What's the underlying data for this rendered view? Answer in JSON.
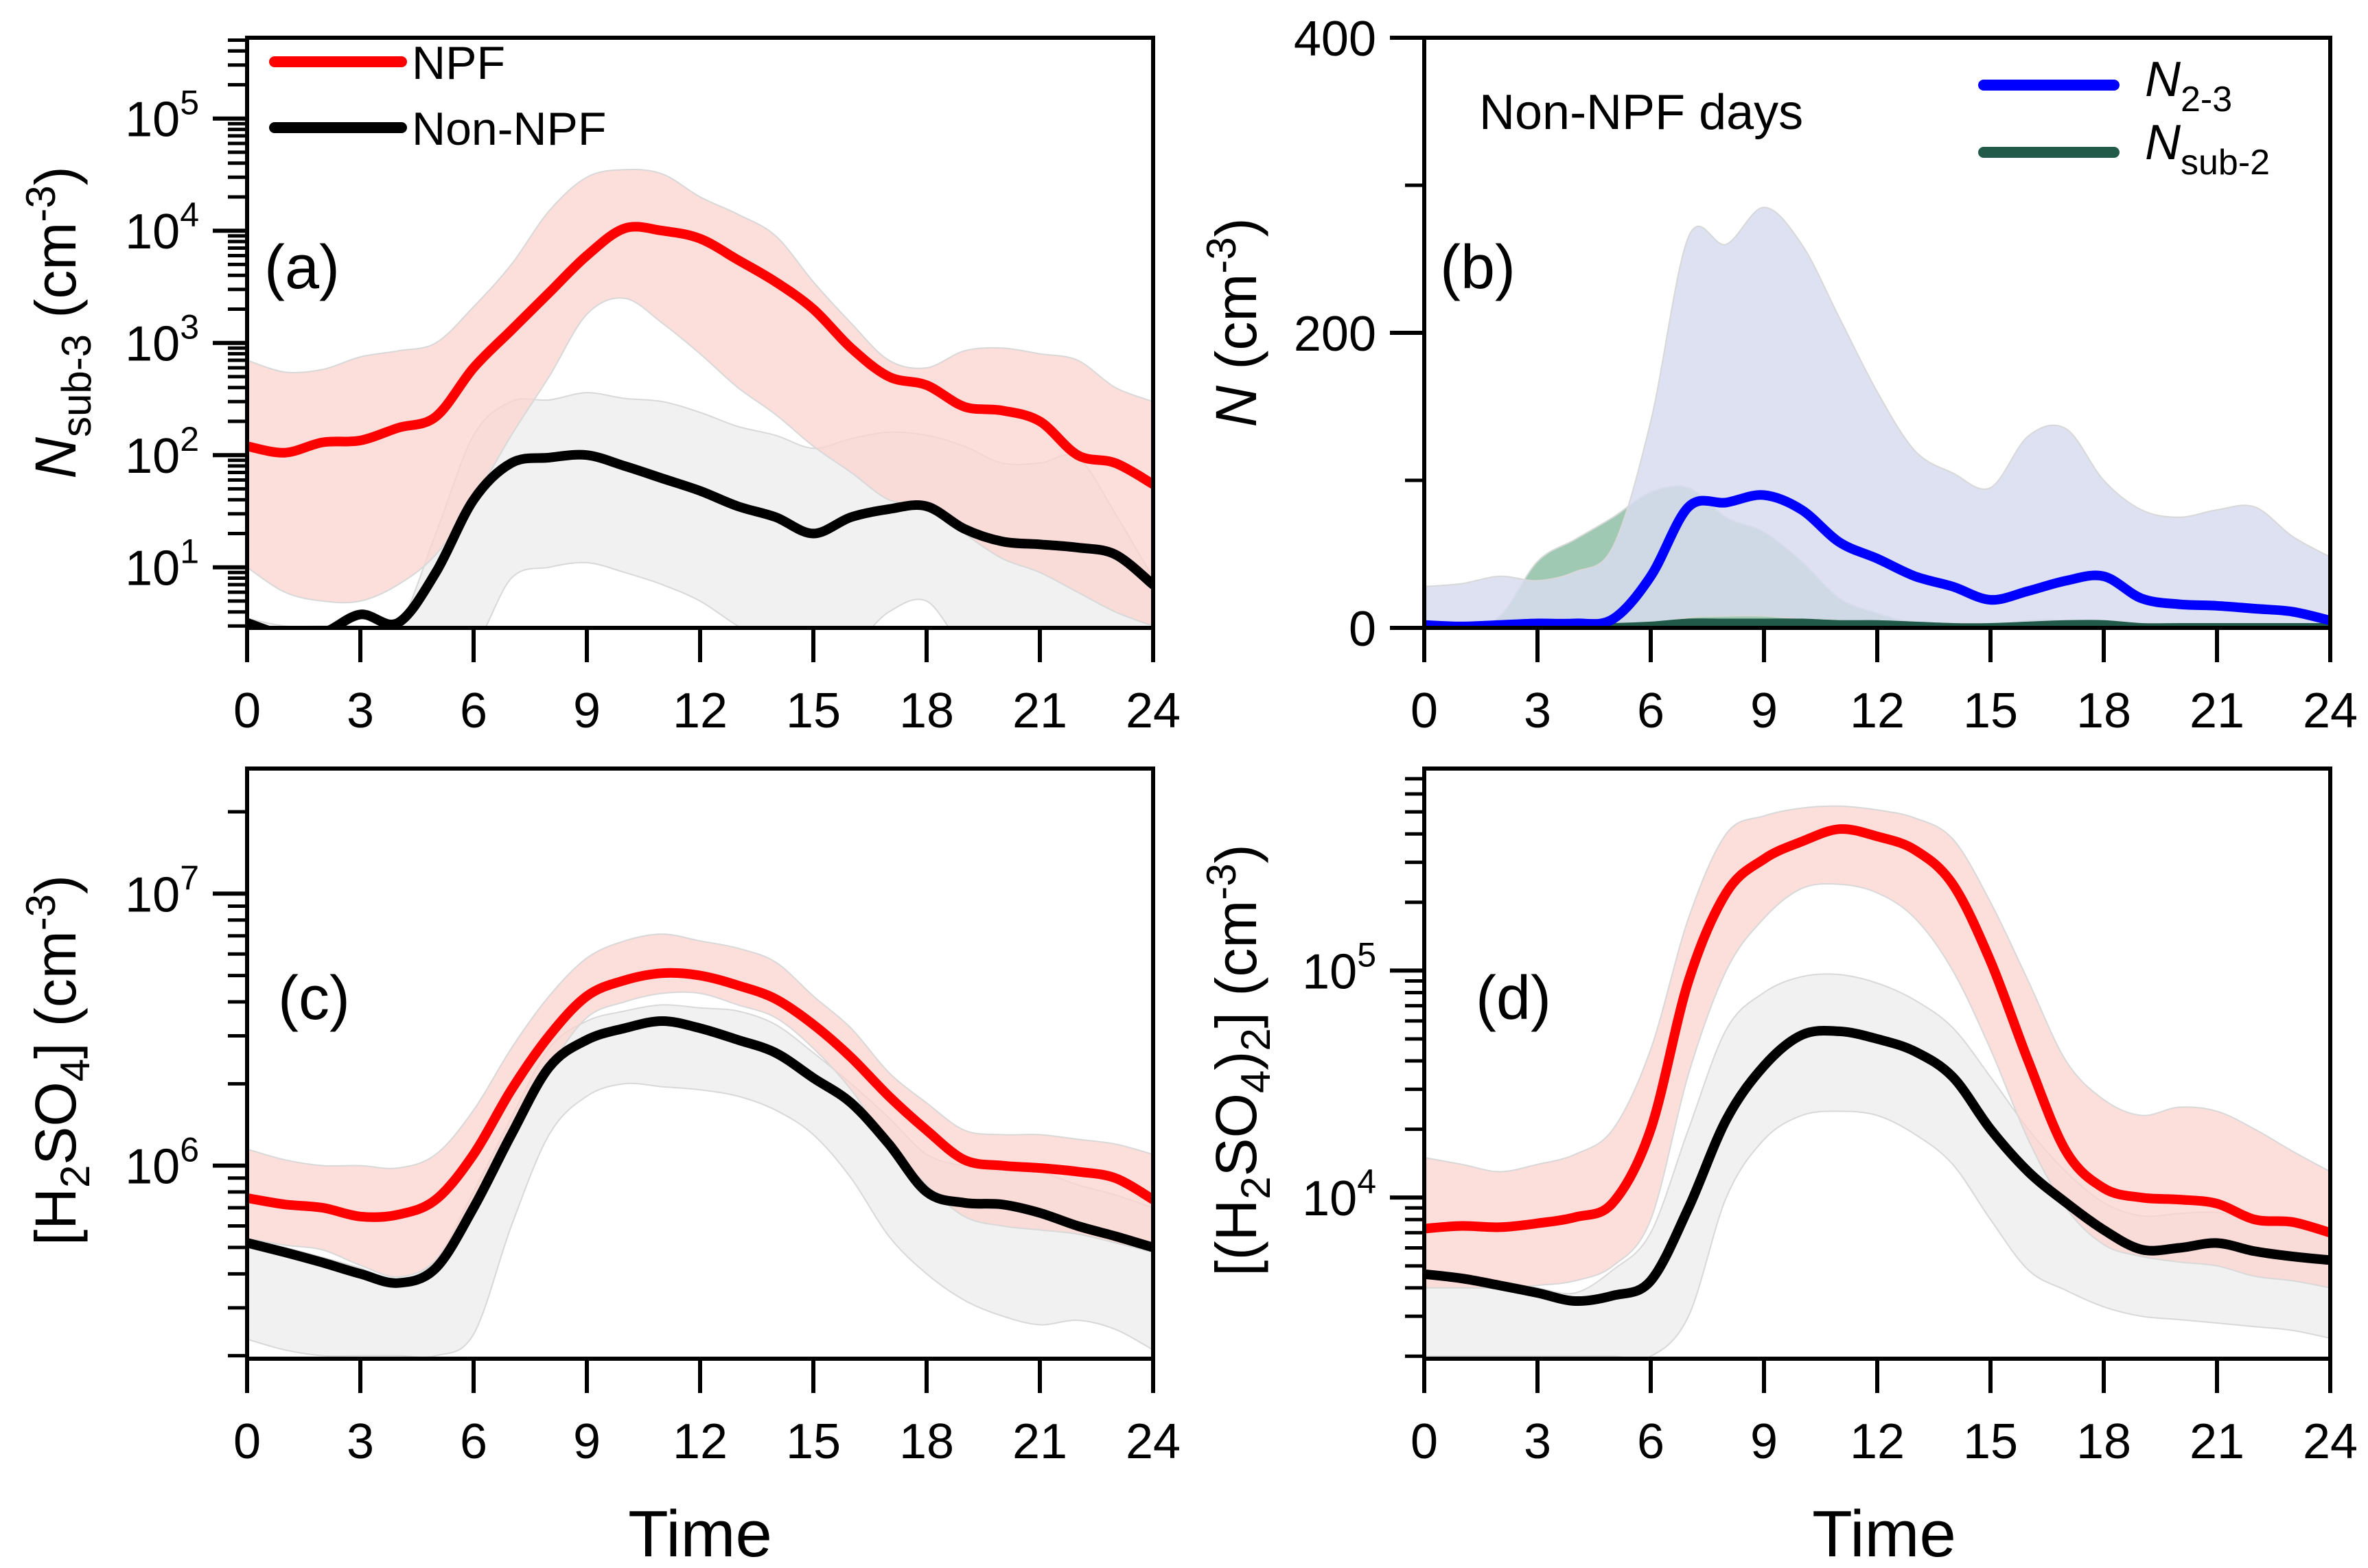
{
  "figure": {
    "x_axis_label": "Time",
    "colors": {
      "npf_line": "#ff0000",
      "npf_band": "#fbd3cf",
      "nonnpf_line": "#000000",
      "nonnpf_band": "#ececec",
      "overlap_line": "#9a7a7a",
      "n23_line": "#0000ff",
      "n23_band": "#d7dcef",
      "nsub2_line": "#215a48",
      "nsub2_band": "#8fbfa6"
    }
  },
  "chart_data": [
    {
      "id": "a",
      "type": "line",
      "panel_label": "(a)",
      "title": "",
      "xlabel": "",
      "ylabel": "N_sub-3 (cm^-3)",
      "ylabel_main": "N",
      "ylabel_sub": "sub-3",
      "ylabel_unit": "(cm",
      "ylabel_sup": "-3",
      "yscale": "log",
      "xlim": [
        0,
        24
      ],
      "ylim_log10": [
        0.46,
        5.72
      ],
      "xticks": [
        0,
        3,
        6,
        9,
        12,
        15,
        18,
        21,
        24
      ],
      "yticks": [
        {
          "base": "10",
          "exp": "1",
          "log": 1
        },
        {
          "base": "10",
          "exp": "2",
          "log": 2
        },
        {
          "base": "10",
          "exp": "3",
          "log": 3
        },
        {
          "base": "10",
          "exp": "4",
          "log": 4
        },
        {
          "base": "10",
          "exp": "5",
          "log": 5
        }
      ],
      "legend": {
        "placement": "top-left",
        "entries": [
          {
            "label": "NPF",
            "color_key": "npf_line"
          },
          {
            "label": "Non-NPF",
            "color_key": "nonnpf_line"
          }
        ]
      },
      "x": [
        0,
        1,
        2,
        3,
        4,
        5,
        6,
        7,
        8,
        9,
        10,
        11,
        12,
        13,
        14,
        15,
        16,
        17,
        18,
        19,
        20,
        21,
        22,
        23,
        24
      ],
      "series": [
        {
          "name": "Non-NPF",
          "color_key": "nonnpf_line",
          "band_key": "nonnpf_band",
          "values": [
            3.2,
            2.5,
            2.6,
            3.8,
            3.2,
            9,
            40,
            85,
            95,
            100,
            80,
            62,
            48,
            35,
            28,
            20,
            28,
            33,
            35,
            22,
            17,
            16,
            15,
            13,
            7
          ],
          "lower": [
            2,
            2,
            2,
            2,
            2,
            2,
            2,
            8,
            10,
            11,
            9,
            7,
            5,
            3,
            2,
            2,
            2,
            4,
            5,
            2,
            2,
            2,
            2,
            2,
            2
          ],
          "upper": [
            3.5,
            3,
            3,
            3,
            3,
            20,
            150,
            300,
            310,
            360,
            320,
            300,
            240,
            180,
            150,
            115,
            140,
            160,
            150,
            120,
            85,
            85,
            95,
            30,
            8
          ]
        },
        {
          "name": "NPF",
          "color_key": "npf_line",
          "band_key": "npf_band",
          "values": [
            120,
            105,
            130,
            135,
            175,
            220,
            600,
            1300,
            2800,
            6000,
            10500,
            10000,
            8500,
            5500,
            3500,
            2000,
            900,
            500,
            420,
            270,
            250,
            200,
            100,
            85,
            55
          ],
          "lower": [
            10,
            6,
            5,
            5,
            7,
            13,
            40,
            150,
            500,
            1800,
            2500,
            1500,
            800,
            400,
            230,
            120,
            70,
            40,
            35,
            20,
            12,
            9,
            6,
            4,
            3
          ],
          "upper": [
            700,
            550,
            580,
            750,
            850,
            1000,
            2100,
            5000,
            15000,
            30000,
            35000,
            32000,
            20000,
            14000,
            9000,
            3500,
            1500,
            700,
            600,
            850,
            900,
            800,
            700,
            400,
            300
          ]
        }
      ]
    },
    {
      "id": "b",
      "type": "line",
      "panel_label": "(b)",
      "annotation": "Non-NPF days",
      "title": "",
      "xlabel": "",
      "ylabel": "N (cm^-3)",
      "ylabel_main": "N",
      "ylabel_unit": "(cm",
      "ylabel_sup": "-3",
      "yscale": "linear",
      "xlim": [
        0,
        24
      ],
      "ylim": [
        0,
        400
      ],
      "xticks": [
        0,
        3,
        6,
        9,
        12,
        15,
        18,
        21,
        24
      ],
      "yticks_labeled": [
        0,
        200,
        400
      ],
      "yticks_minor": [
        100,
        300
      ],
      "legend": {
        "placement": "top-right",
        "entries": [
          {
            "label_main": "N",
            "label_sub": "2-3",
            "color_key": "n23_line"
          },
          {
            "label_main": "N",
            "label_sub": "sub-2",
            "color_key": "nsub2_line"
          }
        ]
      },
      "x": [
        0,
        1,
        2,
        3,
        4,
        5,
        6,
        7,
        8,
        9,
        10,
        11,
        12,
        13,
        14,
        15,
        16,
        17,
        18,
        19,
        20,
        21,
        22,
        23,
        24
      ],
      "series": [
        {
          "name": "N_sub-2",
          "color_key": "nsub2_line",
          "band_key": "nsub2_band",
          "values": [
            0,
            0,
            0,
            0,
            0,
            0,
            1,
            3,
            3,
            3,
            3,
            2,
            2,
            1,
            0,
            0,
            1,
            2,
            2,
            0,
            0,
            0,
            0,
            0,
            0
          ],
          "lower": [
            0,
            0,
            0,
            0,
            0,
            0,
            0,
            0,
            0,
            0,
            0,
            0,
            0,
            0,
            0,
            0,
            0,
            0,
            0,
            0,
            0,
            0,
            0,
            0,
            0
          ],
          "upper": [
            0,
            0,
            8,
            45,
            60,
            75,
            92,
            95,
            75,
            65,
            45,
            20,
            10,
            3,
            0,
            0,
            5,
            5,
            0,
            0,
            0,
            0,
            0,
            0,
            0
          ]
        },
        {
          "name": "N_2-3",
          "color_key": "n23_line",
          "band_key": "n23_band",
          "values": [
            2,
            1,
            2,
            3,
            3,
            6,
            35,
            82,
            85,
            90,
            80,
            58,
            47,
            35,
            28,
            19,
            25,
            32,
            35,
            20,
            16,
            15,
            13,
            11,
            5
          ],
          "lower": [
            0,
            0,
            0,
            0,
            0,
            0,
            2,
            7,
            8,
            8,
            6,
            5,
            3,
            1,
            0,
            0,
            0,
            0,
            0,
            0,
            0,
            0,
            0,
            0,
            0
          ],
          "upper": [
            28,
            30,
            35,
            32,
            38,
            55,
            140,
            265,
            260,
            285,
            260,
            210,
            160,
            120,
            105,
            95,
            130,
            135,
            100,
            80,
            75,
            80,
            82,
            62,
            48
          ]
        }
      ]
    },
    {
      "id": "c",
      "type": "line",
      "panel_label": "(c)",
      "title": "",
      "xlabel": "Time",
      "ylabel": "[H2SO4] (cm^-3)",
      "yscale": "log",
      "xlim": [
        0,
        24
      ],
      "ylim_log10": [
        5.29,
        7.46
      ],
      "xticks": [
        0,
        3,
        6,
        9,
        12,
        15,
        18,
        21,
        24
      ],
      "yticks": [
        {
          "base": "10",
          "exp": "6",
          "log": 6
        },
        {
          "base": "10",
          "exp": "7",
          "log": 7
        }
      ],
      "x": [
        0,
        1,
        2,
        3,
        4,
        5,
        6,
        7,
        8,
        9,
        10,
        11,
        12,
        13,
        14,
        15,
        16,
        17,
        18,
        19,
        20,
        21,
        22,
        23,
        24
      ],
      "series": [
        {
          "name": "Non-NPF",
          "color_key": "nonnpf_line",
          "band_key": "nonnpf_band",
          "values": [
            520000,
            480000,
            440000,
            400000,
            370000,
            420000,
            700000,
            1300000,
            2300000,
            2900000,
            3200000,
            3400000,
            3200000,
            2900000,
            2600000,
            2100000,
            1700000,
            1200000,
            800000,
            730000,
            720000,
            670000,
            600000,
            550000,
            500000
          ],
          "lower": [
            230000,
            210000,
            200000,
            200000,
            200000,
            200000,
            240000,
            600000,
            1300000,
            1800000,
            2000000,
            1950000,
            1900000,
            1800000,
            1600000,
            1300000,
            900000,
            550000,
            400000,
            320000,
            280000,
            260000,
            270000,
            250000,
            210000
          ],
          "upper": [
            540000,
            500000,
            460000,
            420000,
            380000,
            450000,
            800000,
            1500000,
            2700000,
            3400000,
            3700000,
            3900000,
            3800000,
            3700000,
            3300000,
            2600000,
            2000000,
            1500000,
            1100000,
            1000000,
            1000000,
            950000,
            850000,
            780000,
            700000
          ]
        },
        {
          "name": "NPF",
          "color_key": "npf_line",
          "band_key": "npf_band",
          "values": [
            760000,
            720000,
            700000,
            650000,
            660000,
            750000,
            1100000,
            1900000,
            3000000,
            4200000,
            4800000,
            5100000,
            5000000,
            4600000,
            4100000,
            3300000,
            2500000,
            1800000,
            1350000,
            1050000,
            1000000,
            980000,
            950000,
            900000,
            750000
          ],
          "lower": [
            540000,
            510000,
            490000,
            430000,
            390000,
            450000,
            750000,
            1400000,
            2300000,
            3500000,
            4000000,
            4300000,
            4300000,
            3900000,
            3500000,
            2700000,
            1900000,
            1200000,
            850000,
            650000,
            600000,
            580000,
            560000,
            520000,
            480000
          ],
          "upper": [
            1150000,
            1050000,
            1000000,
            1000000,
            980000,
            1100000,
            1600000,
            2700000,
            4200000,
            5800000,
            6700000,
            7100000,
            6700000,
            6300000,
            5600000,
            4200000,
            3200000,
            2200000,
            1700000,
            1350000,
            1300000,
            1300000,
            1250000,
            1200000,
            1100000
          ]
        }
      ]
    },
    {
      "id": "d",
      "type": "line",
      "panel_label": "(d)",
      "title": "",
      "xlabel": "Time",
      "ylabel": "[(H2SO4)2] (cm^-3)",
      "yscale": "log",
      "xlim": [
        0,
        24
      ],
      "ylim_log10": [
        3.29,
        5.89
      ],
      "xticks": [
        0,
        3,
        6,
        9,
        12,
        15,
        18,
        21,
        24
      ],
      "yticks": [
        {
          "base": "10",
          "exp": "4",
          "log": 4
        },
        {
          "base": "10",
          "exp": "5",
          "log": 5
        }
      ],
      "x": [
        0,
        1,
        2,
        3,
        4,
        5,
        6,
        7,
        8,
        9,
        10,
        11,
        12,
        13,
        14,
        15,
        16,
        17,
        18,
        19,
        20,
        21,
        22,
        23,
        24
      ],
      "series": [
        {
          "name": "Non-NPF",
          "color_key": "nonnpf_line",
          "band_key": "nonnpf_band",
          "values": [
            4600,
            4400,
            4100,
            3800,
            3500,
            3700,
            4300,
            9000,
            22000,
            38000,
            52000,
            54000,
            50000,
            44000,
            34000,
            20000,
            13000,
            9500,
            7200,
            5900,
            6000,
            6300,
            5800,
            5500,
            5300
          ],
          "lower": [
            2000,
            2000,
            2000,
            2000,
            2000,
            2000,
            2000,
            3000,
            10000,
            18000,
            23000,
            24000,
            23000,
            19000,
            14000,
            8000,
            4800,
            3900,
            3300,
            3000,
            2900,
            2800,
            2700,
            2600,
            2400
          ],
          "upper": [
            4800,
            4600,
            4300,
            4000,
            3800,
            4800,
            7000,
            20000,
            55000,
            80000,
            94000,
            96000,
            88000,
            74000,
            56000,
            34000,
            20000,
            13000,
            9500,
            8300,
            8500,
            8600,
            8000,
            7700,
            7300
          ]
        },
        {
          "name": "NPF",
          "color_key": "npf_line",
          "band_key": "npf_band",
          "values": [
            7300,
            7500,
            7400,
            7700,
            8200,
            9500,
            20000,
            90000,
            220000,
            310000,
            370000,
            420000,
            390000,
            340000,
            240000,
            110000,
            40000,
            16000,
            11000,
            10000,
            9800,
            9400,
            8000,
            7800,
            7000
          ],
          "lower": [
            4000,
            4000,
            4000,
            4100,
            4300,
            5000,
            8000,
            35000,
            100000,
            170000,
            230000,
            240000,
            220000,
            170000,
            100000,
            45000,
            18000,
            9000,
            6200,
            5500,
            5200,
            5000,
            4500,
            4300,
            4000
          ],
          "upper": [
            15000,
            14000,
            13000,
            14000,
            15500,
            20000,
            45000,
            170000,
            400000,
            480000,
            520000,
            530000,
            510000,
            470000,
            380000,
            200000,
            90000,
            40000,
            27000,
            23000,
            25000,
            24000,
            20000,
            16000,
            13000
          ]
        }
      ]
    }
  ]
}
